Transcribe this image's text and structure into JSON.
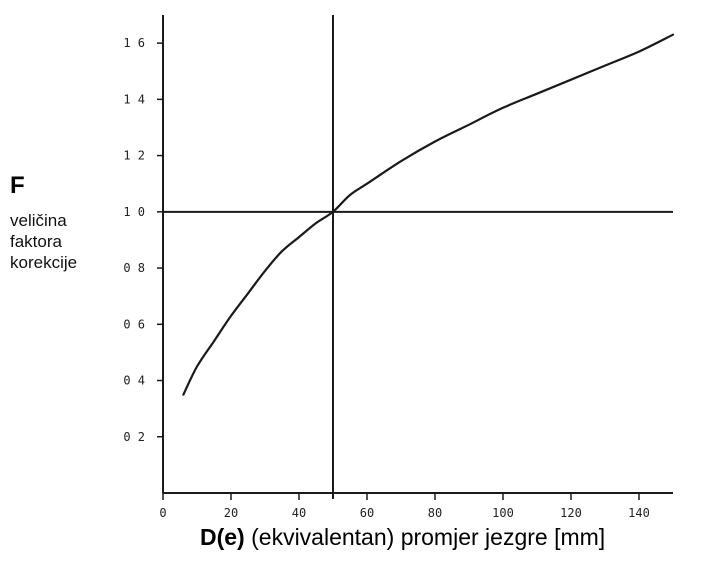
{
  "chart_data": {
    "type": "line",
    "title": "",
    "ylabel_symbol": "F",
    "ylabel_lines": [
      "veličina",
      "faktora",
      "korekcije"
    ],
    "xlabel_symbol": "D(e)",
    "xlabel_text": " (ekvivalentan) promjer jezgre [mm]",
    "xlim": [
      0,
      150
    ],
    "ylim": [
      0,
      1.7
    ],
    "x_ticks": [
      0,
      20,
      40,
      60,
      80,
      100,
      120,
      140
    ],
    "x_tick_labels": [
      "0",
      "20",
      "40",
      "60",
      "80",
      "100",
      "120",
      "140"
    ],
    "y_ticks": [
      0.2,
      0.4,
      0.6,
      0.8,
      1.0,
      1.2,
      1.4,
      1.6
    ],
    "y_tick_labels": [
      "0 2",
      "0 4",
      "0 6",
      "0 8",
      "1 0",
      "1 2",
      "1 4",
      "1 6"
    ],
    "grid": false,
    "reference_lines": {
      "x": 50,
      "y": 1.0
    },
    "series": [
      {
        "x": [
          6,
          10,
          15,
          20,
          25,
          30,
          35,
          40,
          45,
          50,
          55,
          60,
          70,
          80,
          90,
          100,
          110,
          120,
          130,
          140,
          150
        ],
        "y": [
          0.35,
          0.45,
          0.54,
          0.63,
          0.71,
          0.79,
          0.86,
          0.91,
          0.96,
          1.0,
          1.06,
          1.1,
          1.18,
          1.25,
          1.31,
          1.37,
          1.42,
          1.47,
          1.52,
          1.57,
          1.63
        ]
      }
    ]
  }
}
